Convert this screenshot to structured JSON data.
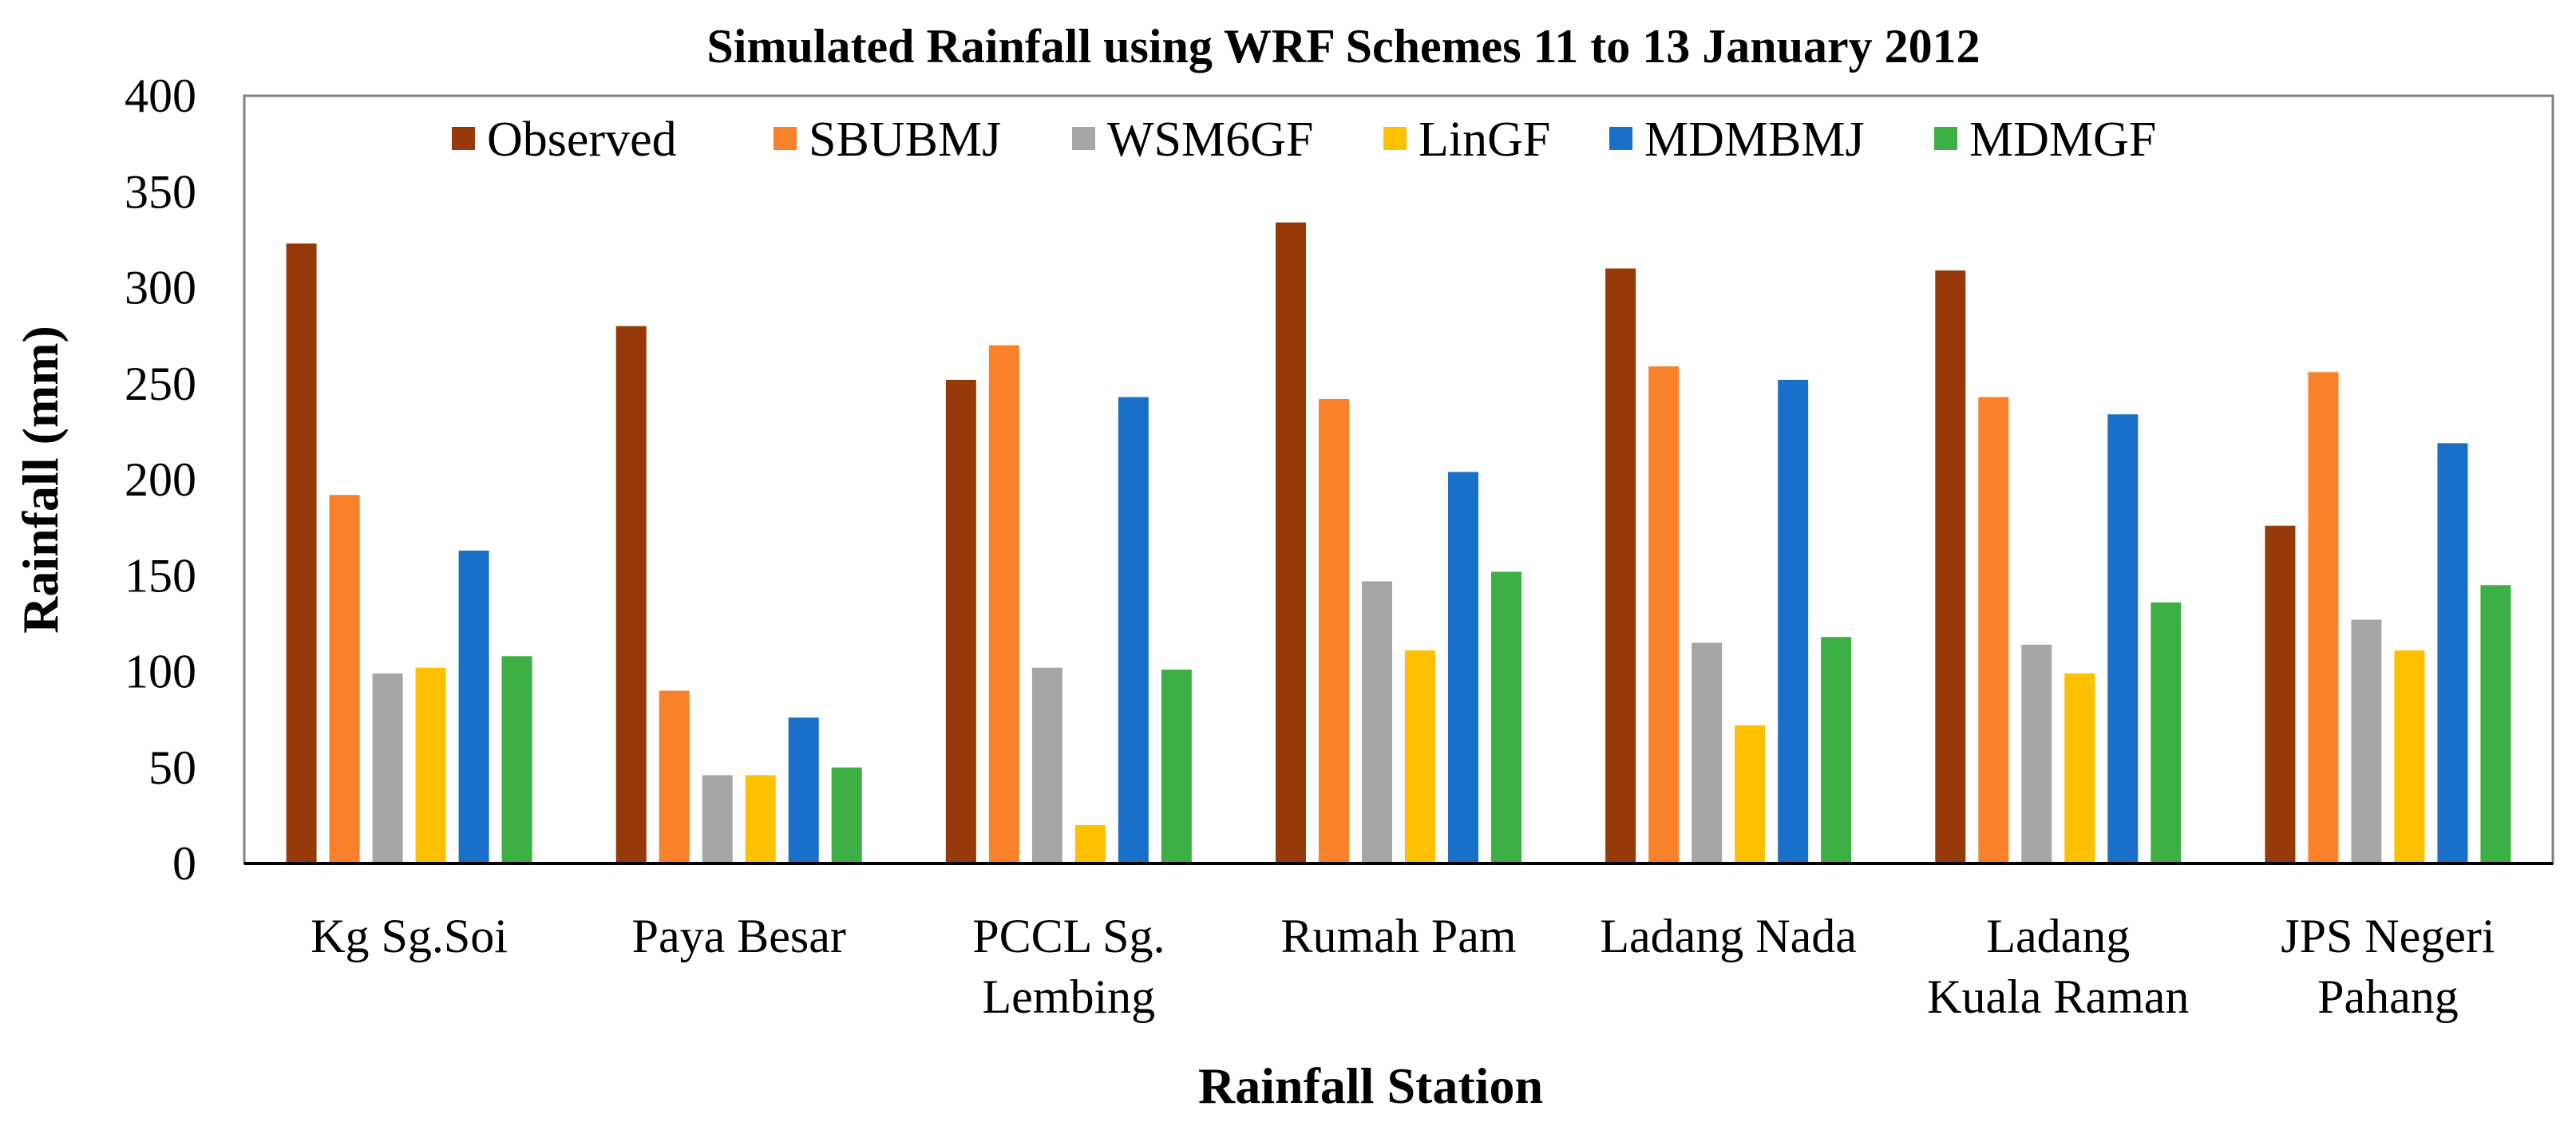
{
  "chart_data": {
    "type": "bar",
    "title": "Simulated Rainfall using WRF Schemes 11 to 13 January 2012",
    "xlabel": "Rainfall Station",
    "ylabel": "Rainfall (mm)",
    "ylim": [
      0,
      400
    ],
    "yticks": [
      0,
      50,
      100,
      150,
      200,
      250,
      300,
      350,
      400
    ],
    "legend_position": "top",
    "categories": [
      [
        "Kg Sg.Soi"
      ],
      [
        "Paya Besar"
      ],
      [
        "PCCL Sg.",
        "Lembing"
      ],
      [
        "Rumah Pam"
      ],
      [
        "Ladang Nada"
      ],
      [
        "Ladang",
        "Kuala Raman"
      ],
      [
        "JPS Negeri",
        "Pahang"
      ]
    ],
    "series": [
      {
        "name": "Observed",
        "color": "#953A08",
        "values": [
          323,
          280,
          252,
          334,
          310,
          309,
          176
        ]
      },
      {
        "name": "SBUBMJ",
        "color": "#F98129",
        "values": [
          192,
          90,
          270,
          242,
          259,
          243,
          256
        ]
      },
      {
        "name": "WSM6GF",
        "color": "#A6A6A6",
        "values": [
          99,
          46,
          102,
          147,
          115,
          114,
          127
        ]
      },
      {
        "name": "LinGF",
        "color": "#FFC000",
        "values": [
          102,
          46,
          20,
          111,
          72,
          99,
          111
        ]
      },
      {
        "name": "MDMBMJ",
        "color": "#1A70C9",
        "values": [
          163,
          76,
          243,
          204,
          252,
          234,
          219
        ]
      },
      {
        "name": "MDMGF",
        "color": "#3CAF45",
        "values": [
          108,
          50,
          101,
          152,
          118,
          136,
          145
        ]
      }
    ]
  }
}
